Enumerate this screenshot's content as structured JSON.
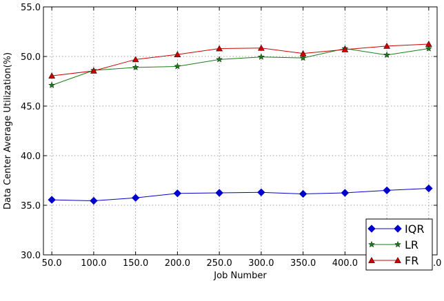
{
  "chart_data": {
    "type": "line",
    "title": "",
    "xlabel": "Job Number",
    "ylabel": "Data Center Average Utilization(%)",
    "x": [
      50,
      100,
      150,
      200,
      250,
      300,
      350,
      400,
      450,
      500
    ],
    "x_tick_labels": [
      "50.0",
      "100.0",
      "150.0",
      "200.0",
      "250.0",
      "300.0",
      "350.0",
      "400.0",
      "450.0",
      "500.0"
    ],
    "xlim": [
      40,
      510
    ],
    "ylim": [
      30,
      55
    ],
    "y_ticks": [
      30,
      35,
      40,
      45,
      50,
      55
    ],
    "y_tick_labels": [
      "30.0",
      "35.0",
      "40.0",
      "45.0",
      "50.0",
      "55.0"
    ],
    "grid": true,
    "legend_position": "lower-right",
    "series": [
      {
        "name": "IQR",
        "color": "#0000cc",
        "marker": "diamond",
        "values": [
          35.55,
          35.45,
          35.75,
          36.2,
          36.25,
          36.3,
          36.15,
          36.25,
          36.5,
          36.7
        ]
      },
      {
        "name": "LR",
        "color": "#1a7a1a",
        "marker": "star",
        "values": [
          47.1,
          48.6,
          48.9,
          49.0,
          49.7,
          49.95,
          49.85,
          50.8,
          50.15,
          50.8
        ]
      },
      {
        "name": "FR",
        "color": "#cc0000",
        "marker": "triangle",
        "values": [
          48.05,
          48.55,
          49.7,
          50.2,
          50.8,
          50.85,
          50.3,
          50.7,
          51.05,
          51.25
        ]
      }
    ]
  }
}
